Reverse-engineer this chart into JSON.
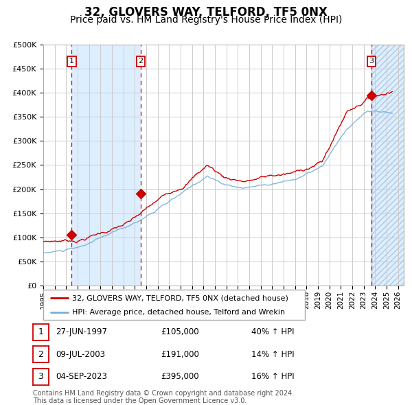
{
  "title": "32, GLOVERS WAY, TELFORD, TF5 0NX",
  "subtitle": "Price paid vs. HM Land Registry's House Price Index (HPI)",
  "ylim": [
    0,
    500000
  ],
  "yticks": [
    0,
    50000,
    100000,
    150000,
    200000,
    250000,
    300000,
    350000,
    400000,
    450000,
    500000
  ],
  "ytick_labels": [
    "£0",
    "£50K",
    "£100K",
    "£150K",
    "£200K",
    "£250K",
    "£300K",
    "£350K",
    "£400K",
    "£450K",
    "£500K"
  ],
  "xlim_start": 1995.0,
  "xlim_end": 2026.5,
  "xtick_years": [
    1995,
    1996,
    1997,
    1998,
    1999,
    2000,
    2001,
    2002,
    2003,
    2004,
    2005,
    2006,
    2007,
    2008,
    2009,
    2010,
    2011,
    2012,
    2013,
    2014,
    2015,
    2016,
    2017,
    2018,
    2019,
    2020,
    2021,
    2022,
    2023,
    2024,
    2025,
    2026
  ],
  "sale_color": "#cc0000",
  "hpi_color": "#7aaed6",
  "vline_color": "#cc0000",
  "span_color": "#ddeeff",
  "transactions": [
    {
      "label": "1",
      "date_year": 1997.49,
      "price": 105000
    },
    {
      "label": "2",
      "date_year": 2003.52,
      "price": 191000
    },
    {
      "label": "3",
      "date_year": 2023.67,
      "price": 395000
    }
  ],
  "table_rows": [
    {
      "num": "1",
      "date": "27-JUN-1997",
      "price": "£105,000",
      "hpi": "40% ↑ HPI"
    },
    {
      "num": "2",
      "date": "09-JUL-2003",
      "price": "£191,000",
      "hpi": "14% ↑ HPI"
    },
    {
      "num": "3",
      "date": "04-SEP-2023",
      "price": "£395,000",
      "hpi": "16% ↑ HPI"
    }
  ],
  "legend_entries": [
    "32, GLOVERS WAY, TELFORD, TF5 0NX (detached house)",
    "HPI: Average price, detached house, Telford and Wrekin"
  ],
  "footnote": "Contains HM Land Registry data © Crown copyright and database right 2024.\nThis data is licensed under the Open Government Licence v3.0.",
  "title_fontsize": 12,
  "subtitle_fontsize": 10
}
